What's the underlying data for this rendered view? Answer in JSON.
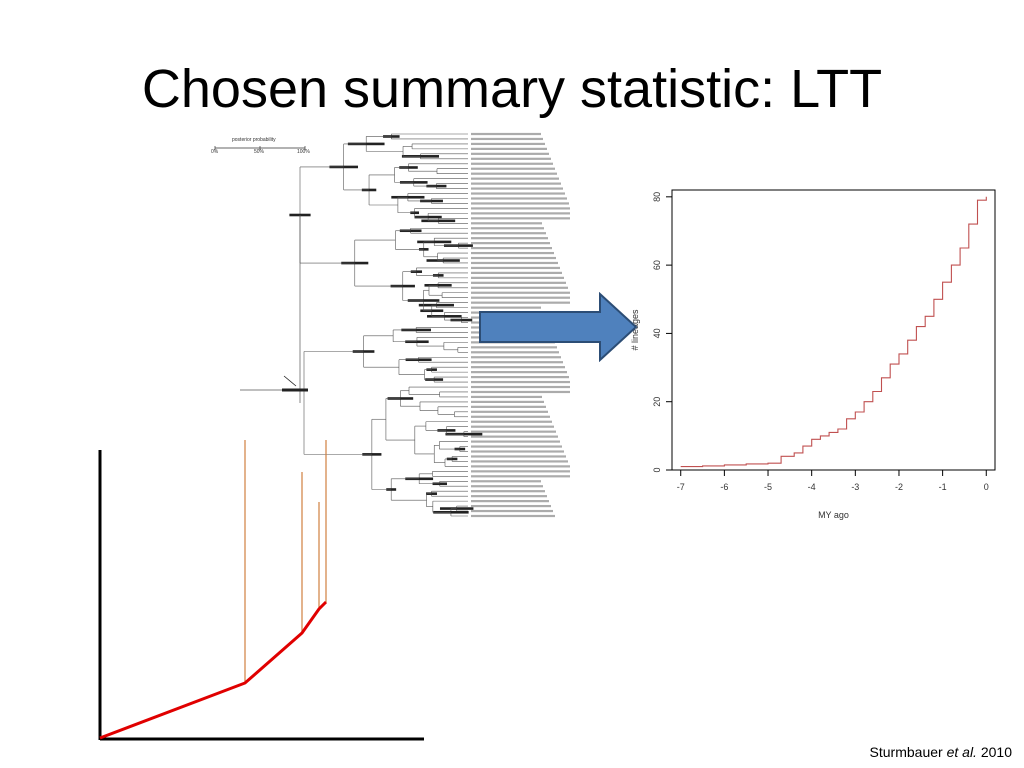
{
  "slide": {
    "title": "Chosen summary statistic: LTT",
    "citation_prefix": "Sturmbauer ",
    "citation_italic": "et al.",
    "citation_suffix": " 2010"
  },
  "colors": {
    "sketch_curve": "#e00000",
    "sketch_lines": "#d08040",
    "ltt_curve": "#c05050",
    "arrow_fill": "#4f81bd",
    "arrow_stroke": "#2c4d75"
  },
  "tree_panel": {
    "scale_title": "posterior probability",
    "scale_ticks": [
      "0%",
      "50%",
      "100%"
    ]
  },
  "chart_data": {
    "type": "line",
    "xlabel": "MY ago",
    "ylabel": "# lineages",
    "xlim": [
      -7.2,
      0.2
    ],
    "ylim": [
      0,
      82
    ],
    "xticks": [
      -7,
      -6,
      -5,
      -4,
      -3,
      -2,
      -1,
      0
    ],
    "yticks": [
      0,
      20,
      40,
      60,
      80
    ],
    "series": [
      {
        "x": [
          -7.0,
          -6.5,
          -6.0,
          -5.5,
          -5.0,
          -4.7,
          -4.4,
          -4.2,
          -4.0,
          -3.8,
          -3.6,
          -3.4,
          -3.2,
          -3.0,
          -2.8,
          -2.6,
          -2.4,
          -2.2,
          -2.0,
          -1.8,
          -1.6,
          -1.4,
          -1.2,
          -1.0,
          -0.8,
          -0.6,
          -0.4,
          -0.2,
          0.0
        ],
        "y": [
          1,
          1.2,
          1.5,
          1.8,
          2,
          4,
          5,
          7,
          9,
          10,
          11,
          12,
          15,
          17,
          20,
          23,
          27,
          31,
          34,
          38,
          42,
          45,
          50,
          55,
          60,
          65,
          72,
          79,
          80
        ]
      }
    ]
  }
}
